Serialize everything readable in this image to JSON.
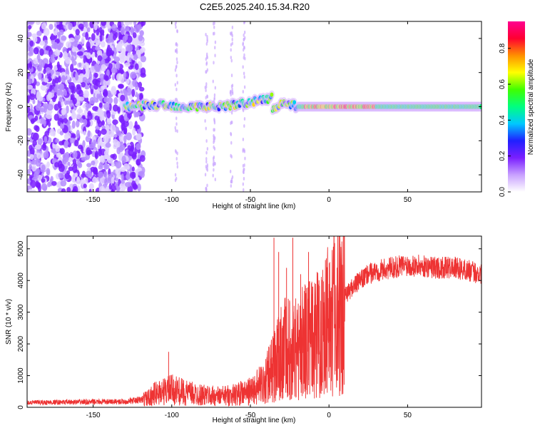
{
  "title": "C2E5.2025.240.15.34.R20",
  "chart_data": [
    {
      "type": "heatmap",
      "name": "spectrogram",
      "xlabel": "Height of straight line (km)",
      "ylabel": "Frequency (Hz)",
      "xlim": [
        -192,
        97
      ],
      "ylim": [
        -50,
        50
      ],
      "xticks": [
        -150,
        -100,
        -50,
        0,
        50
      ],
      "xtick_labels": [
        "-150",
        "-100",
        "-50",
        "0",
        "50"
      ],
      "yticks": [
        -40,
        -20,
        0,
        20,
        40
      ],
      "ytick_labels": [
        "-40",
        "-20",
        "0",
        "20",
        "40"
      ],
      "signal_track": {
        "description_points": [
          [
            -128,
            0
          ],
          [
            -110,
            1
          ],
          [
            -90,
            0
          ],
          [
            -75,
            0
          ],
          [
            -60,
            1
          ],
          [
            -48,
            3
          ],
          [
            -40,
            4
          ],
          [
            -36,
            6
          ],
          [
            -38,
            -4
          ],
          [
            -30,
            3
          ],
          [
            -20,
            0
          ],
          [
            0,
            0
          ],
          [
            50,
            0
          ],
          [
            97,
            0
          ]
        ],
        "peak_band_x": [
          -15,
          30
        ]
      },
      "noise_region_x": [
        -192,
        -118
      ],
      "colorbar": {
        "label": "Normalized spectral amplitude",
        "range": [
          0.0,
          0.95
        ],
        "ticks": [
          0.0,
          0.2,
          0.4,
          0.6,
          0.8
        ],
        "tick_labels": [
          "0.0",
          "0.2",
          "0.4",
          "0.6",
          "0.8"
        ],
        "colors": [
          "#ffffff",
          "#c8a0ff",
          "#7a1fff",
          "#2020ff",
          "#00c8ff",
          "#00ff80",
          "#40ff00",
          "#ffff00",
          "#ff9000",
          "#ff0030",
          "#ff0090"
        ]
      }
    },
    {
      "type": "line",
      "name": "snr",
      "xlabel": "Height of straight line (km)",
      "ylabel": "SNR (10 * v/v)",
      "xlim": [
        -192,
        97
      ],
      "ylim": [
        0,
        5400
      ],
      "xticks": [
        -150,
        -100,
        -50,
        0,
        50
      ],
      "xtick_labels": [
        "-150",
        "-100",
        "-50",
        "0",
        "50"
      ],
      "yticks": [
        0,
        1000,
        2000,
        3000,
        4000,
        5000
      ],
      "ytick_labels": [
        "0",
        "1000",
        "2000",
        "3000",
        "4000",
        "5000"
      ],
      "color": "#ee3333",
      "x": [
        -192,
        -170,
        -150,
        -130,
        -120,
        -115,
        -110,
        -100,
        -90,
        -80,
        -70,
        -60,
        -50,
        -45,
        -40,
        -35,
        -30,
        -25,
        -20,
        -15,
        -10,
        -5,
        0,
        5,
        10,
        15,
        20,
        25,
        30,
        40,
        50,
        60,
        70,
        80,
        90,
        97
      ],
      "values": [
        150,
        160,
        170,
        180,
        230,
        300,
        450,
        550,
        450,
        380,
        350,
        400,
        500,
        650,
        900,
        1300,
        1800,
        2000,
        1900,
        2100,
        2200,
        2500,
        3000,
        3300,
        3500,
        3800,
        4000,
        4200,
        4300,
        4400,
        4500,
        4450,
        4400,
        4400,
        4300,
        4200
      ],
      "spikes": [
        [
          -102,
          1750
        ],
        [
          -35,
          5350
        ],
        [
          -32,
          4900
        ],
        [
          -27,
          4400
        ],
        [
          -23,
          5350
        ],
        [
          -18,
          4200
        ],
        [
          -13,
          4900
        ],
        [
          7,
          5150
        ]
      ]
    }
  ]
}
